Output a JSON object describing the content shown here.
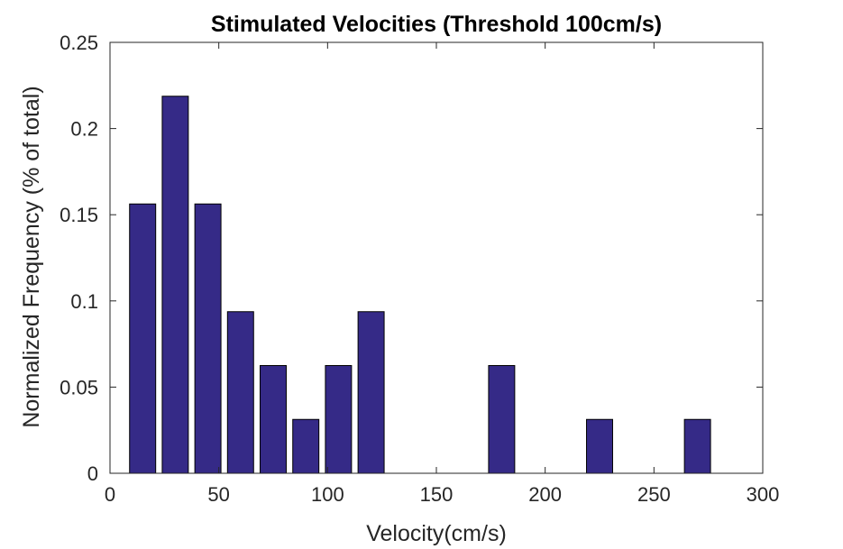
{
  "chart_data": {
    "type": "bar",
    "title": "Stimulated Velocities (Threshold 100cm/s)",
    "xlabel": "Velocity(cm/s)",
    "ylabel": "Normalized Frequency (% of total)",
    "xlim": [
      0,
      300
    ],
    "ylim": [
      0,
      0.25
    ],
    "xticks": [
      0,
      50,
      100,
      150,
      200,
      250,
      300
    ],
    "xtick_labels": [
      "0",
      "50",
      "100",
      "150",
      "200",
      "250",
      "300"
    ],
    "yticks": [
      0,
      0.05,
      0.1,
      0.15,
      0.2,
      0.25
    ],
    "ytick_labels": [
      "0",
      "0.05",
      "0.1",
      "0.15",
      "0.2",
      "0.25"
    ],
    "bin_width": 15,
    "x": [
      15,
      30,
      45,
      60,
      75,
      90,
      105,
      120,
      135,
      150,
      165,
      180,
      195,
      210,
      225,
      240,
      255,
      270,
      285
    ],
    "values": [
      0.15625,
      0.21875,
      0.15625,
      0.09375,
      0.0625,
      0.03125,
      0.0625,
      0.09375,
      0,
      0,
      0,
      0.0625,
      0,
      0,
      0.03125,
      0,
      0,
      0.03125,
      0
    ],
    "bar_color": "#352a87",
    "grid": false,
    "legend": "none"
  }
}
